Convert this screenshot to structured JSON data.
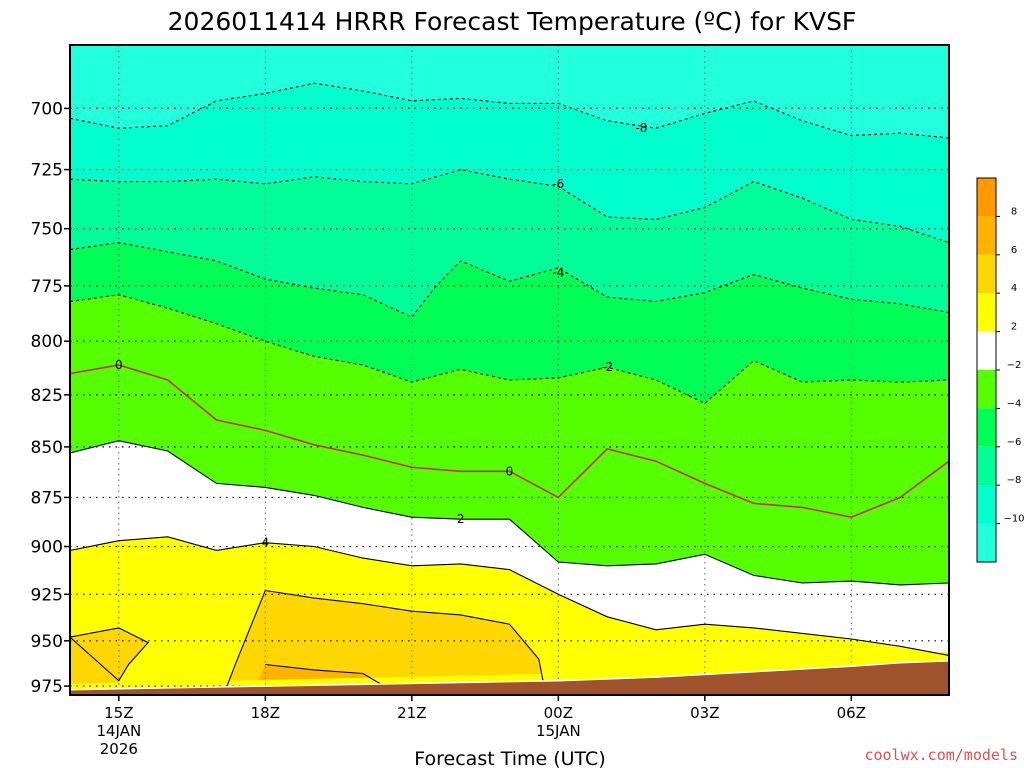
{
  "chart_data": {
    "type": "contour",
    "title": "2026011414 HRRR Forecast Temperature (ºC) for KVSF",
    "xlabel": "Forecast Time (UTC)",
    "credit": "coolwx.com/models",
    "y_scale": "pressure (inverted)",
    "ylim": [
      980,
      675
    ],
    "y_ticks": [
      700,
      725,
      750,
      775,
      800,
      825,
      850,
      875,
      900,
      925,
      950,
      975
    ],
    "x_ticks": [
      {
        "hour": 1,
        "lines": [
          "15Z",
          "14JAN",
          "2026"
        ]
      },
      {
        "hour": 4,
        "lines": [
          "18Z"
        ]
      },
      {
        "hour": 7,
        "lines": [
          "21Z"
        ]
      },
      {
        "hour": 10,
        "lines": [
          "00Z",
          "15JAN"
        ]
      },
      {
        "hour": 13,
        "lines": [
          "03Z"
        ]
      },
      {
        "hour": 16,
        "lines": [
          "06Z"
        ]
      }
    ],
    "xlim": [
      0,
      18
    ],
    "grid": true,
    "colorbar": {
      "placement": "right",
      "ticks": [
        "8",
        "6",
        "4",
        "2",
        "−2",
        "−4",
        "−6",
        "−8",
        "−10"
      ],
      "bands": [
        {
          "color": "#ff9900"
        },
        {
          "color": "#ffb300"
        },
        {
          "color": "#ffd700"
        },
        {
          "color": "#ffff00"
        },
        {
          "color": "#ffffff"
        },
        {
          "color": "#55ff00"
        },
        {
          "color": "#00ff55"
        },
        {
          "color": "#00ff99"
        },
        {
          "color": "#00ffcc"
        },
        {
          "color": "#22ffdd"
        }
      ]
    },
    "fills": [
      {
        "level": "-10",
        "color": "#22ffdd"
      },
      {
        "level": "-8",
        "color": "#00ffcc"
      },
      {
        "level": "-6",
        "color": "#00ff99"
      },
      {
        "level": "-4",
        "color": "#00ff55"
      },
      {
        "level": "-2",
        "color": "#55ff00"
      },
      {
        "level": "2",
        "color": "#ffffff"
      },
      {
        "level": "4",
        "color": "#ffff00"
      },
      {
        "level": "6",
        "color": "#ffd700"
      },
      {
        "level": "8",
        "color": "#ffb300"
      }
    ],
    "surface_color": "#a0522d",
    "contours": [
      {
        "level": "-8",
        "label": "-8",
        "label_at": [
          11.7,
          708
        ],
        "line": "dashed",
        "pts": [
          [
            0,
            704
          ],
          [
            1,
            708
          ],
          [
            2,
            707
          ],
          [
            3,
            697
          ],
          [
            4,
            694
          ],
          [
            5,
            690
          ],
          [
            6,
            693
          ],
          [
            7,
            697
          ],
          [
            8,
            696
          ],
          [
            9,
            698
          ],
          [
            10,
            698
          ],
          [
            11,
            705
          ],
          [
            12,
            708
          ],
          [
            13,
            702
          ],
          [
            14,
            697
          ],
          [
            15,
            705
          ],
          [
            16,
            711
          ],
          [
            17,
            710
          ],
          [
            18,
            712
          ]
        ]
      },
      {
        "level": "-6",
        "label": "-6",
        "label_at": [
          10,
          731
        ],
        "line": "dashed",
        "pts": [
          [
            0,
            729
          ],
          [
            1,
            730
          ],
          [
            2,
            730
          ],
          [
            3,
            729
          ],
          [
            4,
            731
          ],
          [
            5,
            728
          ],
          [
            6,
            730
          ],
          [
            7,
            731
          ],
          [
            8,
            725
          ],
          [
            9,
            729
          ],
          [
            10,
            732
          ],
          [
            11,
            745
          ],
          [
            12,
            746
          ],
          [
            13,
            741
          ],
          [
            14,
            730
          ],
          [
            15,
            737
          ],
          [
            16,
            746
          ],
          [
            17,
            749
          ],
          [
            18,
            756
          ]
        ]
      },
      {
        "level": "-4",
        "label": "-4",
        "label_at": [
          10,
          769
        ],
        "line": "dashed",
        "pts": [
          [
            0,
            759
          ],
          [
            1,
            756
          ],
          [
            2,
            760
          ],
          [
            3,
            764
          ],
          [
            4,
            772
          ],
          [
            5,
            776
          ],
          [
            6,
            779
          ],
          [
            7,
            789
          ],
          [
            7.5,
            775
          ],
          [
            8,
            764
          ],
          [
            9,
            773
          ],
          [
            10,
            767
          ],
          [
            11,
            780
          ],
          [
            12,
            782
          ],
          [
            13,
            778
          ],
          [
            14,
            770
          ],
          [
            15,
            776
          ],
          [
            16,
            781
          ],
          [
            17,
            783
          ],
          [
            18,
            787
          ]
        ]
      },
      {
        "level": "-2",
        "label": "-2",
        "label_at": [
          11,
          812
        ],
        "line": "dashed",
        "pts": [
          [
            0,
            782
          ],
          [
            1,
            779
          ],
          [
            2,
            785
          ],
          [
            3,
            792
          ],
          [
            4,
            800
          ],
          [
            5,
            807
          ],
          [
            6,
            811
          ],
          [
            7,
            819
          ],
          [
            8,
            813
          ],
          [
            9,
            818
          ],
          [
            10,
            817
          ],
          [
            11,
            812
          ],
          [
            12,
            818
          ],
          [
            13,
            829
          ],
          [
            14,
            809
          ],
          [
            15,
            819
          ],
          [
            16,
            818
          ],
          [
            17,
            819
          ],
          [
            18,
            818
          ]
        ]
      },
      {
        "level": "0",
        "label": "0",
        "label_at": [
          1,
          811
        ],
        "label2_at": [
          9,
          862
        ],
        "line": "solid",
        "color": "#cc2a6a",
        "pts": [
          [
            0,
            815
          ],
          [
            1,
            811
          ],
          [
            2,
            818
          ],
          [
            3,
            837
          ],
          [
            4,
            842
          ],
          [
            5,
            849
          ],
          [
            6,
            854
          ],
          [
            7,
            860
          ],
          [
            8,
            862
          ],
          [
            9,
            862
          ],
          [
            10,
            875
          ],
          [
            11,
            851
          ],
          [
            12,
            857
          ],
          [
            13,
            868
          ],
          [
            14,
            878
          ],
          [
            15,
            880
          ],
          [
            16,
            885
          ],
          [
            17,
            875
          ],
          [
            18,
            857
          ]
        ]
      },
      {
        "level": "2",
        "label": "2",
        "label_at": [
          8,
          886
        ],
        "line": "solid",
        "pts": [
          [
            0,
            853
          ],
          [
            1,
            847
          ],
          [
            2,
            852
          ],
          [
            3,
            868
          ],
          [
            4,
            870
          ],
          [
            5,
            874
          ],
          [
            6,
            880
          ],
          [
            7,
            885
          ],
          [
            8,
            886
          ],
          [
            9,
            886
          ],
          [
            10,
            908
          ],
          [
            11,
            910
          ],
          [
            12,
            909
          ],
          [
            13,
            904
          ],
          [
            14,
            915
          ],
          [
            15,
            919
          ],
          [
            16,
            918
          ],
          [
            17,
            920
          ],
          [
            18,
            919
          ]
        ]
      },
      {
        "level": "4",
        "label": "4",
        "label_at": [
          4,
          898
        ],
        "line": "solid",
        "pts": [
          [
            0,
            902
          ],
          [
            1,
            897
          ],
          [
            2,
            895
          ],
          [
            3,
            902
          ],
          [
            4,
            898
          ],
          [
            5,
            900
          ],
          [
            6,
            906
          ],
          [
            7,
            910
          ],
          [
            8,
            909
          ],
          [
            9,
            912
          ],
          [
            10,
            925
          ],
          [
            11,
            937
          ],
          [
            12,
            944
          ],
          [
            13,
            941
          ],
          [
            14,
            943
          ],
          [
            15,
            946
          ],
          [
            16,
            949
          ],
          [
            17,
            953
          ],
          [
            18,
            958
          ]
        ]
      },
      {
        "level": "6",
        "label": "",
        "line": "solid",
        "pts": [
          [
            4,
            923
          ],
          [
            5,
            927
          ],
          [
            6,
            930
          ],
          [
            7,
            934
          ],
          [
            8,
            936
          ],
          [
            9,
            941
          ],
          [
            9.6,
            960
          ],
          [
            9.7,
            974
          ],
          [
            8,
            976
          ],
          [
            6,
            976
          ],
          [
            4,
            976
          ],
          [
            3.2,
            976
          ],
          [
            3.4,
            962
          ]
        ]
      },
      {
        "level": "6",
        "label": "",
        "line": "solid",
        "pts": [
          [
            0,
            948
          ],
          [
            0.6,
            945
          ],
          [
            1,
            943
          ],
          [
            1.6,
            951
          ],
          [
            1.2,
            963
          ],
          [
            1,
            972
          ]
        ]
      },
      {
        "level": "8",
        "label": "",
        "line": "solid",
        "pts": [
          [
            4,
            963
          ],
          [
            5,
            966
          ],
          [
            6,
            968
          ],
          [
            6.5,
            976
          ]
        ]
      }
    ]
  }
}
